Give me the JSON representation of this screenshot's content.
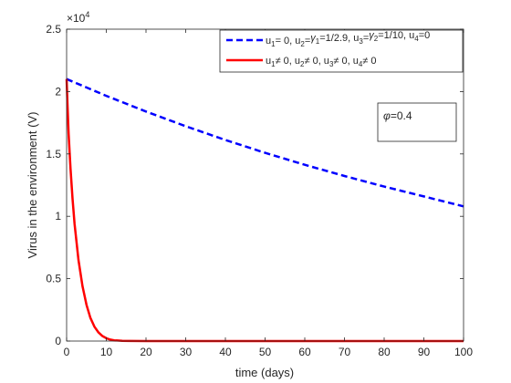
{
  "chart_data": {
    "type": "line",
    "title": "",
    "xlabel": "time (days)",
    "ylabel": "Virus in the environment (V)",
    "xlim": [
      0,
      100
    ],
    "ylim": [
      0,
      25000
    ],
    "x_ticks": [
      0,
      10,
      20,
      30,
      40,
      50,
      60,
      70,
      80,
      90,
      100
    ],
    "y_ticks": [
      0,
      5000,
      10000,
      15000,
      20000,
      25000
    ],
    "y_tick_labels": [
      "0",
      "0.5",
      "1",
      "1.5",
      "2",
      "2.5"
    ],
    "y_exponent_base": "×10",
    "y_exponent_power": "4",
    "grid": false,
    "legend_position": "top-right",
    "annotation": {
      "symbol": "φ",
      "text": "=0.4"
    },
    "series": [
      {
        "name": "u1= 0, u2=γ1=1/2.9, u3=γ2=1/10, u4=0",
        "legend_parts": [
          [
            "u",
            ""
          ],
          [
            "1",
            "sub"
          ],
          [
            "= 0, u",
            ""
          ],
          [
            "2",
            "sub"
          ],
          [
            "=",
            ""
          ],
          [
            "γ",
            "sym"
          ],
          [
            "1",
            "sub"
          ],
          [
            "=1/2.9, u",
            ""
          ],
          [
            "3",
            "sub"
          ],
          [
            "=",
            ""
          ],
          [
            "γ",
            "sym"
          ],
          [
            "2",
            "sub"
          ],
          [
            "=1/10, u",
            ""
          ],
          [
            "4",
            "sub"
          ],
          [
            "=0",
            ""
          ]
        ],
        "color": "#0000ff",
        "style": "dashed",
        "x": [
          0,
          10,
          20,
          30,
          40,
          50,
          60,
          70,
          80,
          90,
          100
        ],
        "y": [
          21000,
          19660,
          18400,
          17220,
          16120,
          15090,
          14130,
          13230,
          12380,
          11590,
          10800
        ]
      },
      {
        "name": "u1≠ 0, u2≠ 0, u3≠ 0, u4≠ 0",
        "legend_parts": [
          [
            "u",
            ""
          ],
          [
            "1",
            "sub"
          ],
          [
            "≠ 0, u",
            ""
          ],
          [
            "2",
            "sub"
          ],
          [
            "≠ 0, u",
            ""
          ],
          [
            "3",
            "sub"
          ],
          [
            "≠ 0, u",
            ""
          ],
          [
            "4",
            "sub"
          ],
          [
            "≠ 0",
            ""
          ]
        ],
        "color": "#ff0000",
        "style": "solid",
        "x": [
          0,
          0.25,
          0.5,
          1,
          1.5,
          2,
          3,
          4,
          5,
          6,
          7,
          8,
          9,
          10,
          11,
          12,
          14,
          16,
          20,
          30,
          40,
          50,
          60,
          70,
          80,
          90,
          100
        ],
        "y": [
          21000,
          18700,
          16600,
          13800,
          11400,
          9400,
          6500,
          4400,
          2900,
          1850,
          1150,
          700,
          400,
          230,
          120,
          60,
          20,
          5,
          0,
          0,
          0,
          0,
          0,
          0,
          0,
          0,
          0
        ]
      }
    ]
  }
}
